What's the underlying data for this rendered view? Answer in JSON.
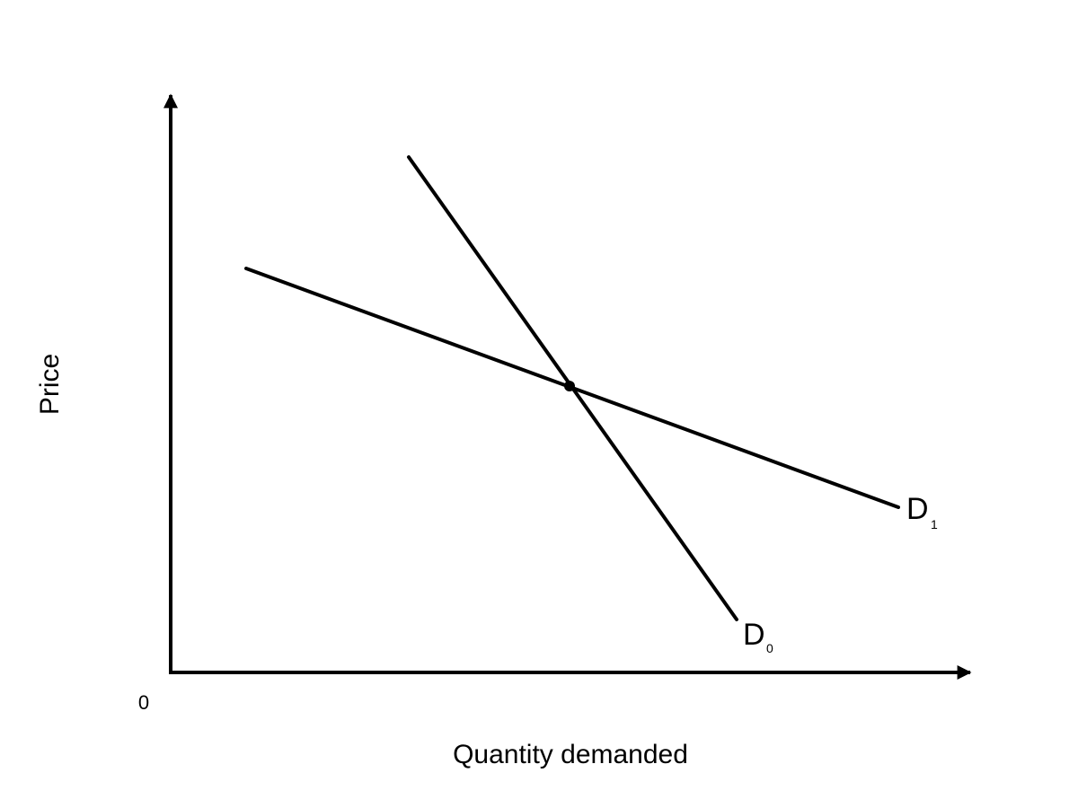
{
  "axes": {
    "y_label": "Price",
    "x_label": "Quantity demanded",
    "origin": "0"
  },
  "curves": [
    {
      "label": "D",
      "subscript": "0"
    },
    {
      "label": "D",
      "subscript": "1"
    }
  ]
}
